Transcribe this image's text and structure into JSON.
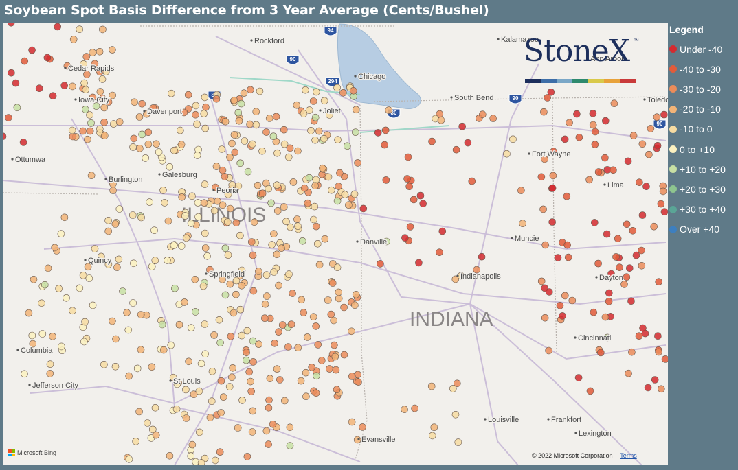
{
  "title": "Soybean Spot Basis Difference from 3 Year Average (Cents/Bushel)",
  "legend": {
    "title": "Legend",
    "items": [
      {
        "label": "Under -40",
        "color": "#d42a2f"
      },
      {
        "label": "-40 to -30",
        "color": "#e25b3a"
      },
      {
        "label": "-30 to -20",
        "color": "#eb8c5a"
      },
      {
        "label": "-20 to -10",
        "color": "#f2b478"
      },
      {
        "label": "-10 to 0",
        "color": "#f7dca2"
      },
      {
        "label": "0 to +10",
        "color": "#fbf1c0"
      },
      {
        "label": "+10 to +20",
        "color": "#c8e0a4"
      },
      {
        "label": "+20 to +30",
        "color": "#8ec58f"
      },
      {
        "label": "+30 to +40",
        "color": "#5aa596"
      },
      {
        "label": "Over +40",
        "color": "#3d7fbf"
      }
    ]
  },
  "logo": {
    "text": "StoneX",
    "tm": "™",
    "bar_colors": [
      "#1d2f5c",
      "#3d6ea8",
      "#7aa7c7",
      "#2e8a6e",
      "#d9c94a",
      "#e8a23a",
      "#c93a3a"
    ]
  },
  "map": {
    "lake_label": "Chicago",
    "state_labels": [
      "ILLINOIS",
      "INDIANA"
    ],
    "cities": [
      "Rockford",
      "Chicago",
      "Kalamazoo",
      "Ann Arbor",
      "Cedar Rapids",
      "Iowa City",
      "Davenport",
      "Joliet",
      "South Bend",
      "Toledo",
      "Ottumwa",
      "Burlington",
      "Galesburg",
      "Peoria",
      "Fort Wayne",
      "Lima",
      "Danville",
      "Muncie",
      "Quincy",
      "Springfield",
      "Indianapolis",
      "Dayton",
      "Columbia",
      "Cincinnati",
      "Jefferson City",
      "St Louis",
      "Louisville",
      "Frankfort",
      "Evansville",
      "Lexington"
    ],
    "interstates": [
      "94",
      "90",
      "88",
      "294",
      "80",
      "90",
      "90"
    ]
  },
  "footer": {
    "bing": "Microsoft Bing",
    "copyright": "© 2022 Microsoft Corporation",
    "terms": "Terms"
  }
}
